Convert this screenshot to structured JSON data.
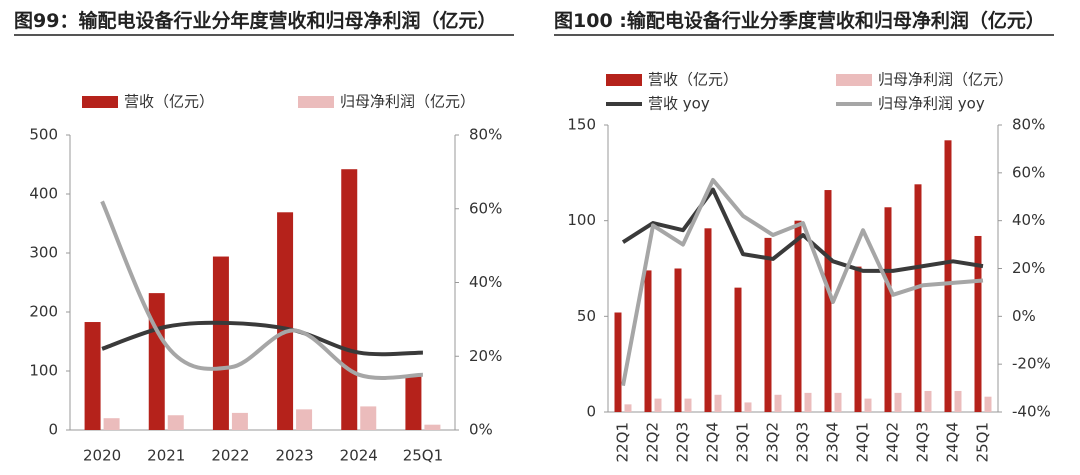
{
  "chart_data": [
    {
      "type": "bar",
      "title": "图99：输配电设备行业分年度营收和归母净利润（亿元）",
      "smooth": true,
      "categories": [
        "2020",
        "2021",
        "2022",
        "2023",
        "2024",
        "25Q1"
      ],
      "series": [
        {
          "name": "营收（亿元）",
          "color": "#b5221b",
          "values": [
            183,
            232,
            294,
            369,
            442,
            92
          ]
        },
        {
          "name": "归母净利润（亿元）",
          "color": "#ebbcbc",
          "values": [
            20,
            25,
            29,
            35,
            40,
            9
          ]
        },
        {
          "type": "line",
          "axis": "y2",
          "color": "#3a3a3a",
          "values": [
            22,
            28,
            29,
            27,
            21,
            21
          ]
        },
        {
          "type": "line",
          "axis": "y2",
          "color": "#a6a6a6",
          "values": [
            62,
            23,
            17,
            27,
            15,
            15
          ]
        }
      ],
      "ylim": [
        0,
        500
      ],
      "yticks": [
        0,
        100,
        200,
        300,
        400,
        500
      ],
      "y2lim": [
        0,
        80
      ],
      "y2ticks": [
        {
          "value": 0,
          "label": "0%"
        },
        {
          "value": 20,
          "label": "20%"
        },
        {
          "value": 40,
          "label": "40%"
        },
        {
          "value": 60,
          "label": "60%"
        },
        {
          "value": 80,
          "label": "80%"
        }
      ]
    },
    {
      "type": "bar",
      "title": "图100 :输配电设备行业分季度营收和归母净利润（亿元）",
      "smooth": false,
      "rotate_labels": true,
      "categories": [
        "22Q1",
        "22Q2",
        "22Q3",
        "22Q4",
        "23Q1",
        "23Q2",
        "23Q3",
        "23Q4",
        "24Q1",
        "24Q2",
        "24Q3",
        "24Q4",
        "25Q1"
      ],
      "series": [
        {
          "name": "营收（亿元）",
          "color": "#b5221b",
          "values": [
            52,
            74,
            75,
            96,
            65,
            91,
            100,
            116,
            76,
            107,
            119,
            142,
            92
          ]
        },
        {
          "name": "归母净利润（亿元）",
          "color": "#ebbcbc",
          "values": [
            4,
            7,
            7,
            9,
            5,
            9,
            10,
            10,
            7,
            10,
            11,
            11,
            8
          ]
        },
        {
          "name": "营收 yoy",
          "type": "line",
          "axis": "y2",
          "color": "#3a3a3a",
          "values": [
            31,
            39,
            36,
            53,
            26,
            24,
            34,
            23,
            19,
            19,
            21,
            23,
            21
          ]
        },
        {
          "name": "归母净利润 yoy",
          "type": "line",
          "axis": "y2",
          "color": "#a6a6a6",
          "values": [
            -29,
            38,
            30,
            57,
            42,
            34,
            39,
            6,
            36,
            9,
            13,
            14,
            15
          ]
        }
      ],
      "ylim": [
        0,
        150
      ],
      "yticks": [
        0,
        50,
        100,
        150
      ],
      "y2lim": [
        -40,
        80
      ],
      "y2ticks": [
        {
          "value": -40,
          "label": "-40%"
        },
        {
          "value": -20,
          "label": "-20%"
        },
        {
          "value": 0,
          "label": "0%"
        },
        {
          "value": 20,
          "label": "20%"
        },
        {
          "value": 40,
          "label": "40%"
        },
        {
          "value": 60,
          "label": "60%"
        },
        {
          "value": 80,
          "label": "80%"
        }
      ]
    }
  ]
}
